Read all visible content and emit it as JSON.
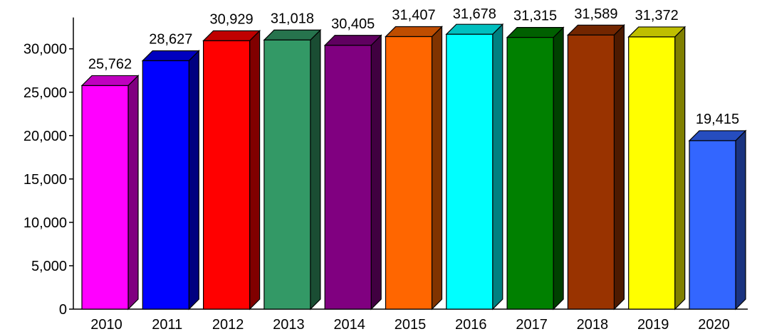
{
  "chart_data": {
    "type": "bar",
    "title": "",
    "xlabel": "",
    "ylabel": "",
    "categories": [
      "2010",
      "2011",
      "2012",
      "2013",
      "2014",
      "2015",
      "2016",
      "2017",
      "2018",
      "2019",
      "2020"
    ],
    "values": [
      25762,
      28627,
      30929,
      31018,
      30405,
      31407,
      31678,
      31315,
      31589,
      31372,
      19415
    ],
    "value_labels": [
      "25,762",
      "28,627",
      "30,929",
      "31,018",
      "30,405",
      "31,407",
      "31,678",
      "31,315",
      "31,589",
      "31,372",
      "19,415"
    ],
    "colors": [
      "#ff00ff",
      "#0000ff",
      "#ff0000",
      "#339966",
      "#800080",
      "#ff6600",
      "#00ffff",
      "#008000",
      "#993300",
      "#ffff00",
      "#3366ff"
    ],
    "ylim": [
      0,
      35000
    ],
    "yticks": [
      0,
      5000,
      10000,
      15000,
      20000,
      25000,
      30000
    ],
    "ytick_labels": [
      "0",
      "5,000",
      "10,000",
      "15,000",
      "20,000",
      "25,000",
      "30,000"
    ],
    "grid": false,
    "legend": "none",
    "style": "3d-bar"
  }
}
